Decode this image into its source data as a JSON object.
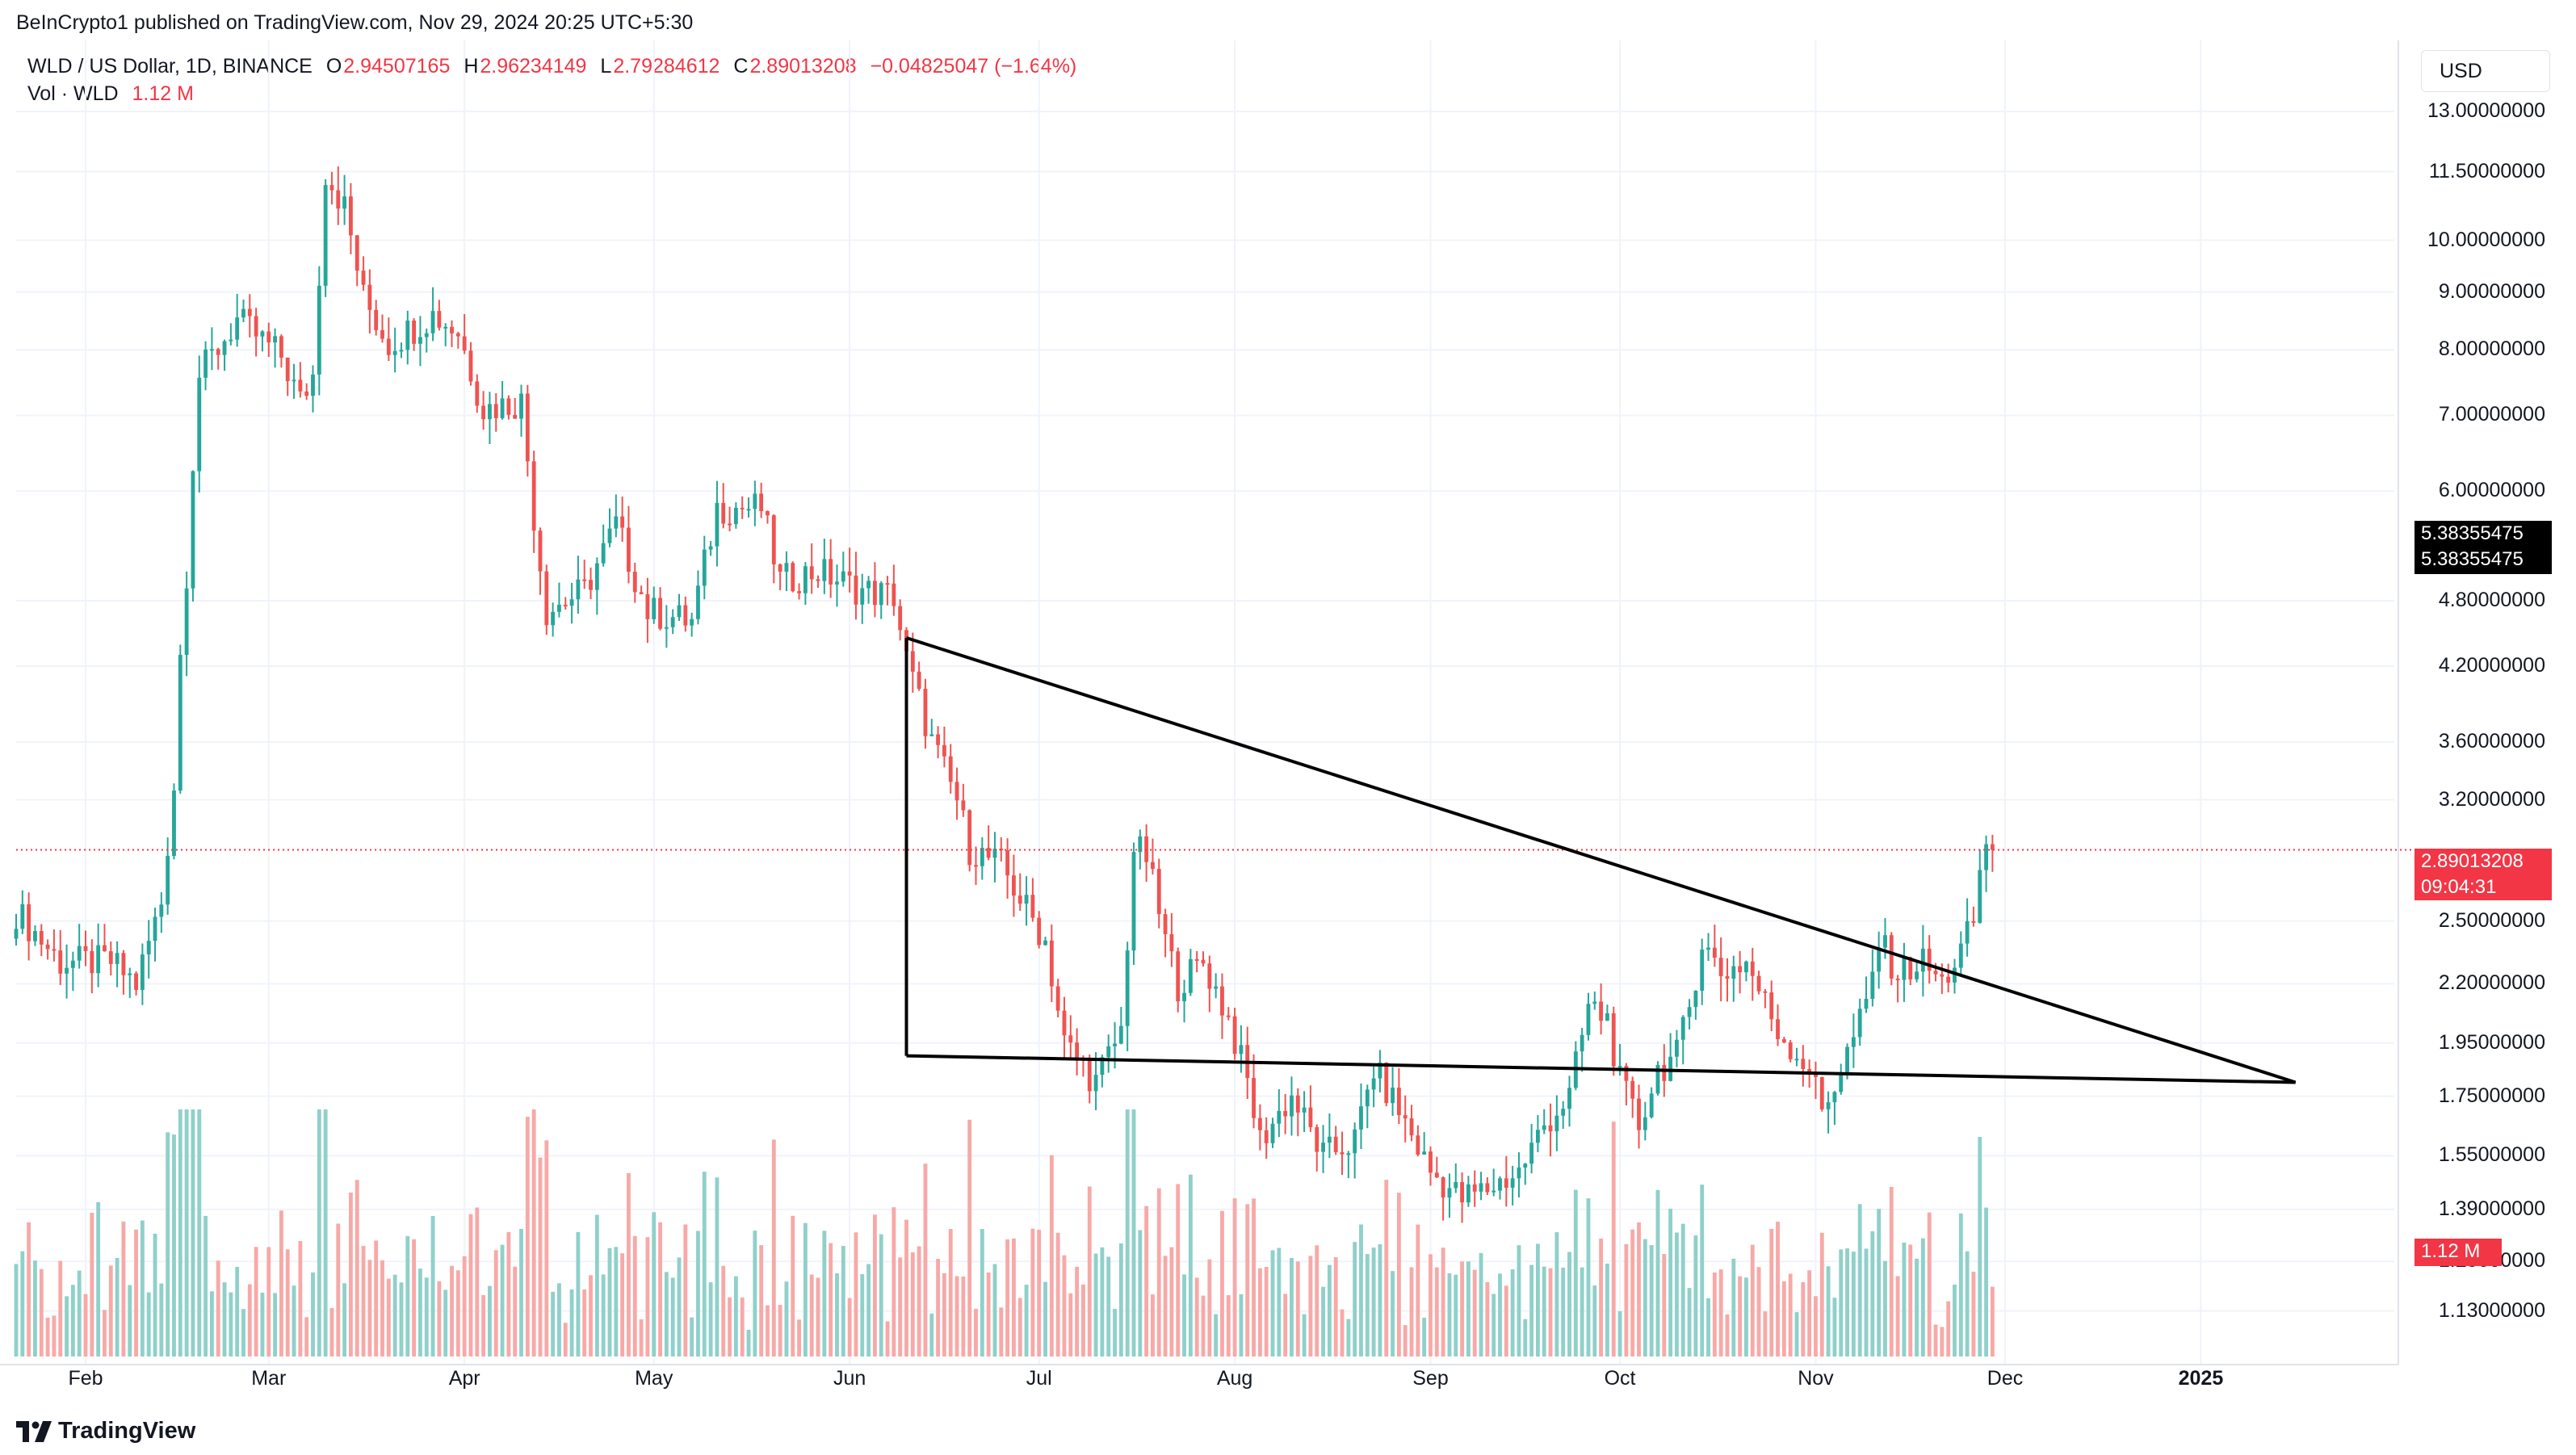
{
  "header": {
    "published": "BeInCrypto1 published on TradingView.com, Nov 29, 2024 20:25 UTC+5:30"
  },
  "legend": {
    "symbol": "WLD / US Dollar, 1D, BINANCE",
    "open_key": "O",
    "open": "2.94507165",
    "high_key": "H",
    "high": "2.96234149",
    "low_key": "L",
    "low": "2.79284612",
    "close_key": "C",
    "close": "2.89013208",
    "change": "−0.04825047 (−1.64%)",
    "vol_label": "Vol · WLD",
    "vol_value": "1.12 M"
  },
  "currency": "USD",
  "price_scale_labels": [
    "13.00000000",
    "11.50000000",
    "10.00000000",
    "9.00000000",
    "8.00000000",
    "7.00000000",
    "6.00000000",
    "4.80000000",
    "4.20000000",
    "3.60000000",
    "3.20000000",
    "2.50000000",
    "2.20000000",
    "1.95000000",
    "1.75000000",
    "1.55000000",
    "1.39000000",
    "1.25000000",
    "1.13000000"
  ],
  "tags": {
    "alert_1": "5.38355475",
    "alert_2": "5.38355475",
    "last_price": "2.89013208",
    "countdown": "09:04:31",
    "volume": "1.12 M"
  },
  "footer": {
    "brand": "TradingView",
    "logo_icon": "tradingview-logo-icon"
  },
  "colors": {
    "up": "#26a69a",
    "down": "#ef5350",
    "vol_up": "#8fd0ca",
    "vol_down": "#f7a9a7",
    "line": "#000000",
    "last_price_tag": "#f23645",
    "alert_tag": "#000000"
  },
  "chart_data": {
    "type": "candlestick",
    "symbol": "WLD / US Dollar",
    "interval": "1D",
    "exchange": "BINANCE",
    "scale": "log",
    "x_range": [
      "2024-01-21",
      "2025-01-31"
    ],
    "x_ticks": [
      "Feb",
      "Mar",
      "Apr",
      "May",
      "Jun",
      "Jul",
      "Aug",
      "Sep",
      "Oct",
      "Nov",
      "Dec",
      "2025"
    ],
    "ylim": [
      1.03,
      14.3
    ],
    "grid": true,
    "candle_anchors": [
      [
        "2024-01-21",
        2.55,
        "side"
      ],
      [
        "2024-01-28",
        2.3,
        "side"
      ],
      [
        "2024-02-05",
        2.3,
        "side"
      ],
      [
        "2024-02-09",
        2.2,
        "side"
      ],
      [
        "2024-02-13",
        2.6,
        "side"
      ],
      [
        "2024-02-15",
        3.3,
        "side"
      ],
      [
        "2024-02-16",
        4.3,
        "side"
      ],
      [
        "2024-02-17",
        5.1,
        "side"
      ],
      [
        "2024-02-18",
        6.4,
        "side"
      ],
      [
        "2024-02-19",
        7.6,
        "side"
      ],
      [
        "2024-02-25",
        8.5,
        "side"
      ],
      [
        "2024-03-03",
        7.9,
        "side"
      ],
      [
        "2024-03-06",
        7.2,
        "side"
      ],
      [
        "2024-03-08",
        7.6,
        "side"
      ],
      [
        "2024-03-10",
        11.5,
        "side"
      ],
      [
        "2024-03-13",
        10.7,
        "side"
      ],
      [
        "2024-03-16",
        8.9,
        "side"
      ],
      [
        "2024-03-20",
        8.1,
        "side"
      ],
      [
        "2024-03-27",
        8.6,
        "side"
      ],
      [
        "2024-03-31",
        8.3,
        "side"
      ],
      [
        "2024-04-04",
        7.1,
        "side"
      ],
      [
        "2024-04-10",
        7.2,
        "side"
      ],
      [
        "2024-04-12",
        5.7,
        "side"
      ],
      [
        "2024-04-14",
        4.7,
        "side"
      ],
      [
        "2024-04-20",
        4.9,
        "side"
      ],
      [
        "2024-04-25",
        5.6,
        "side"
      ],
      [
        "2024-04-30",
        4.7,
        "side"
      ],
      [
        "2024-05-07",
        4.6,
        "side"
      ],
      [
        "2024-05-11",
        5.8,
        "side"
      ],
      [
        "2024-05-18",
        5.8,
        "side"
      ],
      [
        "2024-05-21",
        5.0,
        "side"
      ],
      [
        "2024-05-27",
        5.1,
        "side"
      ],
      [
        "2024-06-03",
        4.9,
        "side"
      ],
      [
        "2024-06-08",
        4.85,
        "side"
      ],
      [
        "2024-06-10",
        4.25,
        "side"
      ],
      [
        "2024-06-14",
        3.6,
        "side"
      ],
      [
        "2024-06-18",
        3.2,
        "side"
      ],
      [
        "2024-06-20",
        2.9,
        "side"
      ],
      [
        "2024-06-25",
        2.8,
        "side"
      ],
      [
        "2024-07-02",
        2.4,
        "side"
      ],
      [
        "2024-07-05",
        1.95,
        "side"
      ],
      [
        "2024-07-10",
        1.8,
        "side"
      ],
      [
        "2024-07-14",
        2.0,
        "side"
      ],
      [
        "2024-07-16",
        2.9,
        "side"
      ],
      [
        "2024-07-18",
        2.85,
        "side"
      ],
      [
        "2024-07-21",
        2.4,
        "side"
      ],
      [
        "2024-07-23",
        2.2,
        "side"
      ],
      [
        "2024-07-27",
        2.3,
        "side"
      ],
      [
        "2024-07-31",
        2.05,
        "side"
      ],
      [
        "2024-08-03",
        1.8,
        "side"
      ],
      [
        "2024-08-05",
        1.6,
        "side"
      ],
      [
        "2024-08-10",
        1.75,
        "side"
      ],
      [
        "2024-08-15",
        1.55,
        "side"
      ],
      [
        "2024-08-20",
        1.6,
        "side"
      ],
      [
        "2024-08-23",
        1.85,
        "side"
      ],
      [
        "2024-08-27",
        1.7,
        "side"
      ],
      [
        "2024-09-01",
        1.5,
        "side"
      ],
      [
        "2024-09-06",
        1.42,
        "side"
      ],
      [
        "2024-09-10",
        1.45,
        "side"
      ],
      [
        "2024-09-15",
        1.5,
        "side"
      ],
      [
        "2024-09-19",
        1.65,
        "side"
      ],
      [
        "2024-09-23",
        1.75,
        "side"
      ],
      [
        "2024-09-26",
        2.1,
        "side"
      ],
      [
        "2024-09-29",
        2.05,
        "side"
      ],
      [
        "2024-10-01",
        1.8,
        "side"
      ],
      [
        "2024-10-04",
        1.65,
        "side"
      ],
      [
        "2024-10-07",
        1.85,
        "side"
      ],
      [
        "2024-10-10",
        1.9,
        "side"
      ],
      [
        "2024-10-12",
        2.1,
        "side"
      ],
      [
        "2024-10-14",
        2.4,
        "side"
      ],
      [
        "2024-10-17",
        2.25,
        "side"
      ],
      [
        "2024-10-21",
        2.3,
        "side"
      ],
      [
        "2024-10-26",
        2.0,
        "side"
      ],
      [
        "2024-10-31",
        1.85,
        "side"
      ],
      [
        "2024-11-02",
        1.7,
        "side"
      ],
      [
        "2024-11-05",
        1.85,
        "side"
      ],
      [
        "2024-11-09",
        2.1,
        "side"
      ],
      [
        "2024-11-11",
        2.4,
        "side"
      ],
      [
        "2024-11-14",
        2.25,
        "side"
      ],
      [
        "2024-11-18",
        2.3,
        "side"
      ],
      [
        "2024-11-21",
        2.2,
        "side"
      ],
      [
        "2024-11-24",
        2.35,
        "side"
      ],
      [
        "2024-11-26",
        2.5,
        "side"
      ],
      [
        "2024-11-27",
        2.75,
        "side"
      ],
      [
        "2024-11-28",
        2.94,
        "side"
      ],
      [
        "2024-11-29",
        2.89,
        "side"
      ]
    ],
    "volume_max": 2.8,
    "last_price": 2.89013208,
    "last_volume": "1.12 M",
    "trendlines": [
      {
        "name": "descending-resistance",
        "from": [
          "2024-06-10",
          4.45
        ],
        "to": [
          "2025-01-16",
          1.8
        ]
      },
      {
        "name": "horizontal-support",
        "from": [
          "2024-06-10",
          1.9
        ],
        "to": [
          "2025-01-16",
          1.8
        ]
      },
      {
        "name": "vertical-pole",
        "from": [
          "2024-06-10",
          4.45
        ],
        "to": [
          "2024-06-10",
          1.9
        ]
      }
    ],
    "alert_level": 5.38355475
  }
}
